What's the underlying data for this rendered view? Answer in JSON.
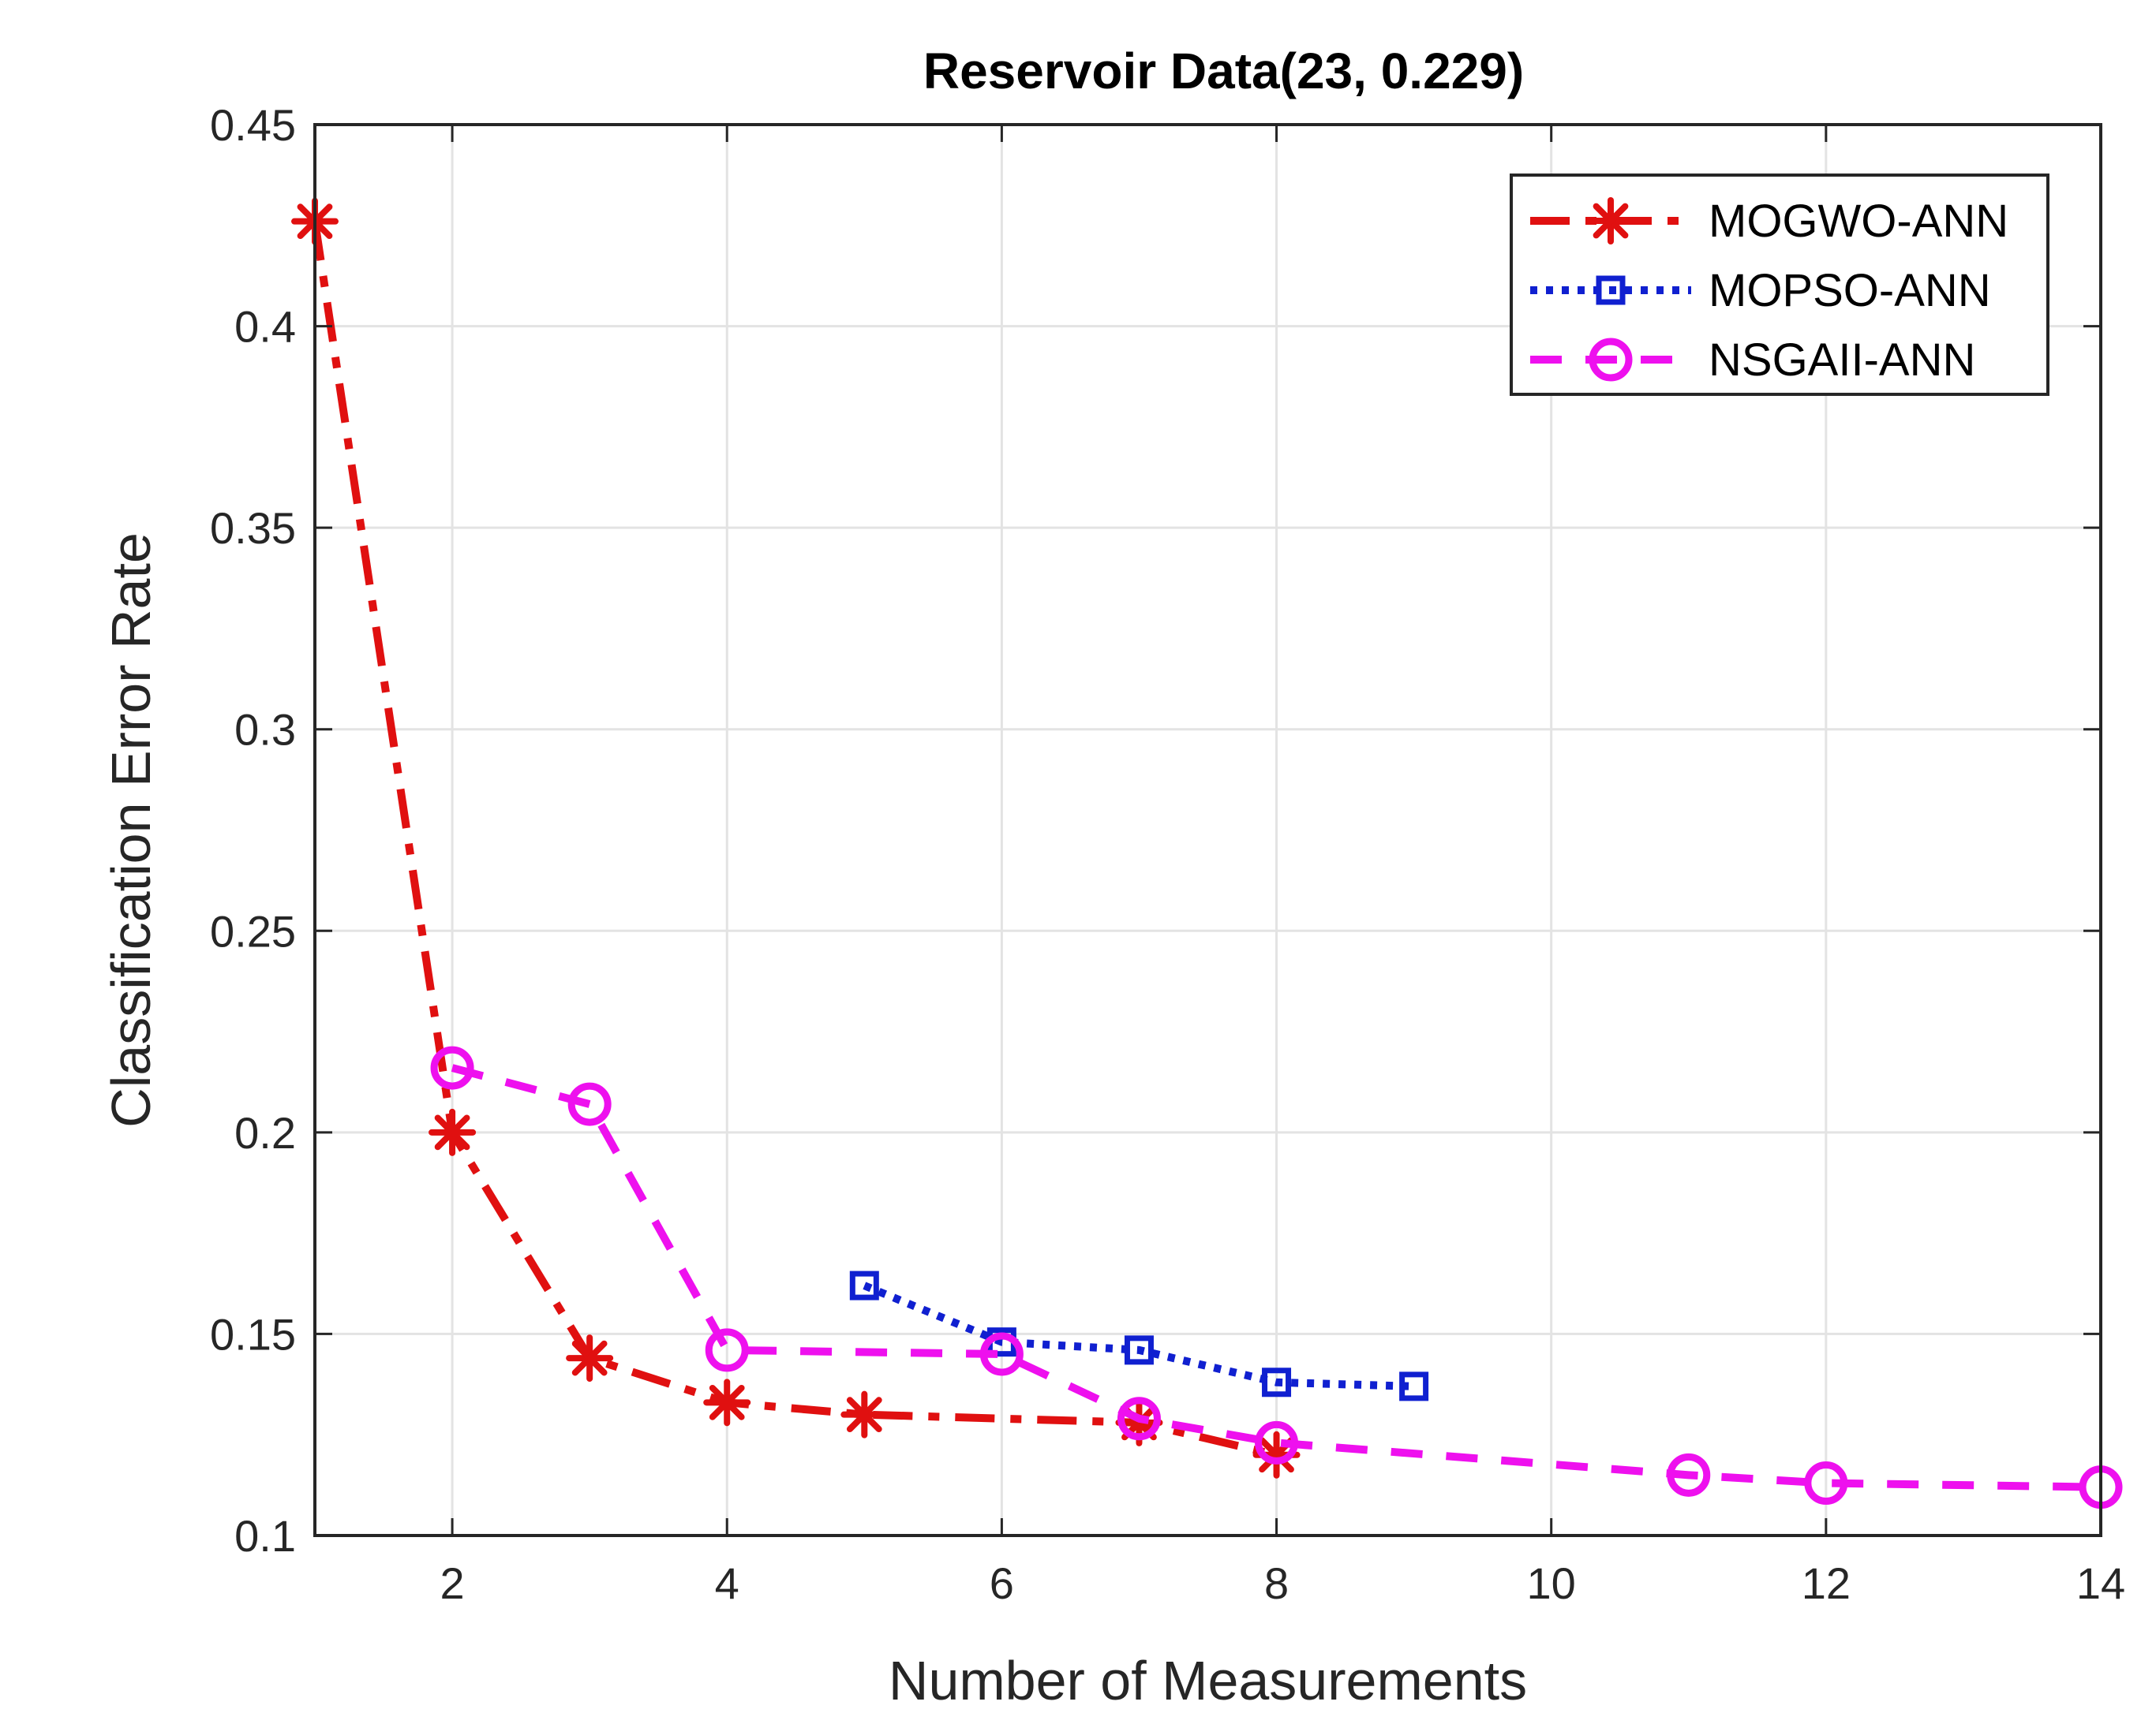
{
  "chart_data": {
    "type": "line",
    "title": "Reservoir Data(23, 0.229)",
    "xlabel": "Number of Measurements",
    "ylabel": "Classification Error Rate",
    "xlim": [
      1,
      14
    ],
    "ylim": [
      0.1,
      0.45
    ],
    "xticks": [
      2,
      4,
      6,
      8,
      10,
      12,
      14
    ],
    "xtick_labels": [
      "2",
      "4",
      "6",
      "8",
      "10",
      "12",
      "14"
    ],
    "yticks": [
      0.1,
      0.15,
      0.2,
      0.25,
      0.3,
      0.35,
      0.4,
      0.45
    ],
    "ytick_labels": [
      "0.1",
      "0.15",
      "0.2",
      "0.25",
      "0.3",
      "0.35",
      "0.4",
      "0.45"
    ],
    "grid": true,
    "legend_position": "top-right",
    "series": [
      {
        "name": "MOGWO-ANN",
        "color": "#e01010",
        "line_style": "dash-dot",
        "marker": "asterisk",
        "x": [
          1,
          2,
          3,
          4,
          5,
          7,
          8
        ],
        "y": [
          0.426,
          0.2,
          0.144,
          0.133,
          0.13,
          0.128,
          0.12
        ]
      },
      {
        "name": "MOPSO-ANN",
        "color": "#1020d0",
        "line_style": "dotted",
        "marker": "square",
        "x": [
          5,
          6,
          7,
          8,
          9
        ],
        "y": [
          0.162,
          0.148,
          0.146,
          0.138,
          0.137
        ]
      },
      {
        "name": "NSGAII-ANN",
        "color": "#ee10ee",
        "line_style": "dashed",
        "marker": "circle",
        "x": [
          2,
          3,
          4,
          6,
          7,
          8,
          11,
          12,
          14
        ],
        "y": [
          0.216,
          0.207,
          0.146,
          0.145,
          0.129,
          0.123,
          0.115,
          0.113,
          0.112
        ]
      }
    ]
  }
}
